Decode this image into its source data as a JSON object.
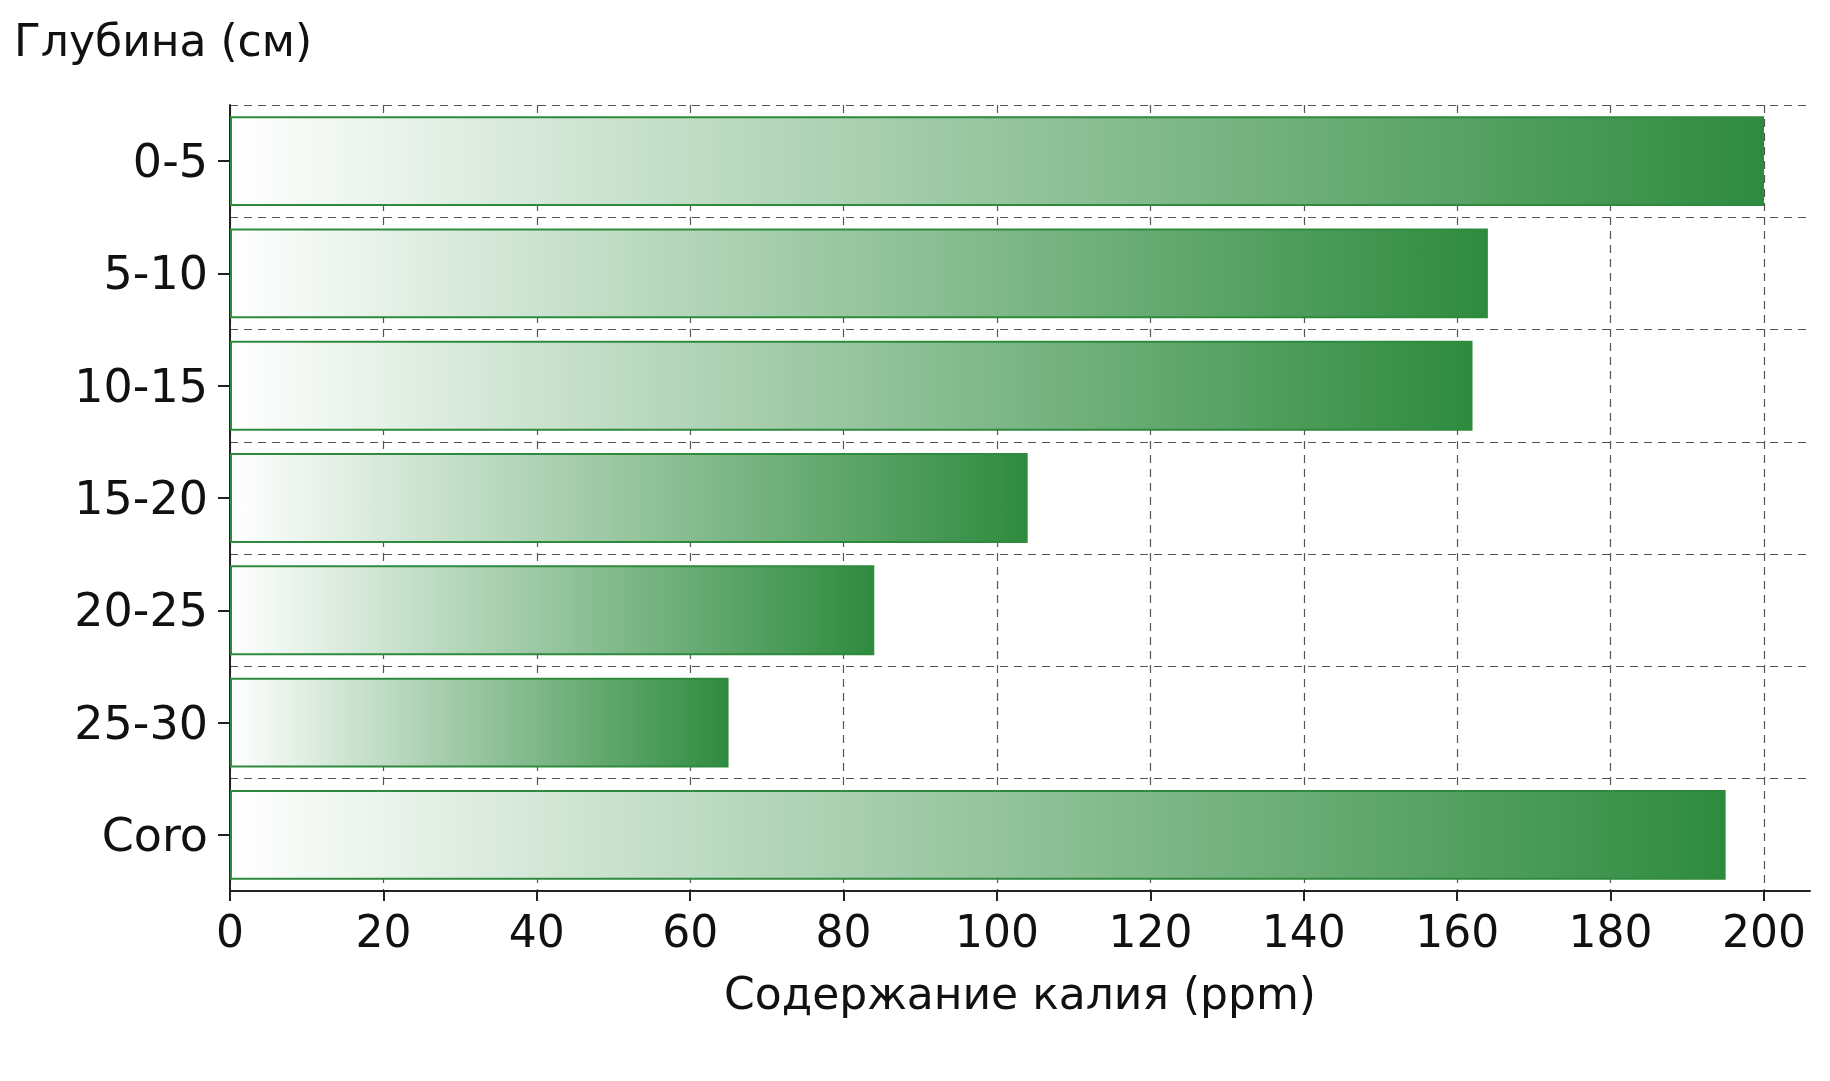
{
  "chart_data": {
    "type": "bar",
    "orientation": "horizontal",
    "ylabel": "Глубина (см)",
    "xlabel": "Содержание калия (ppm)",
    "categories": [
      "0-5",
      "5-10",
      "10-15",
      "15-20",
      "20-25",
      "25-30",
      "Coro"
    ],
    "values": [
      200,
      164,
      162,
      104,
      84,
      65,
      195
    ],
    "color": "#2e8b3e",
    "xlim": [
      0,
      206
    ],
    "xticks": [
      0,
      20,
      40,
      60,
      80,
      100,
      120,
      140,
      160,
      180,
      200
    ],
    "grid": true
  }
}
